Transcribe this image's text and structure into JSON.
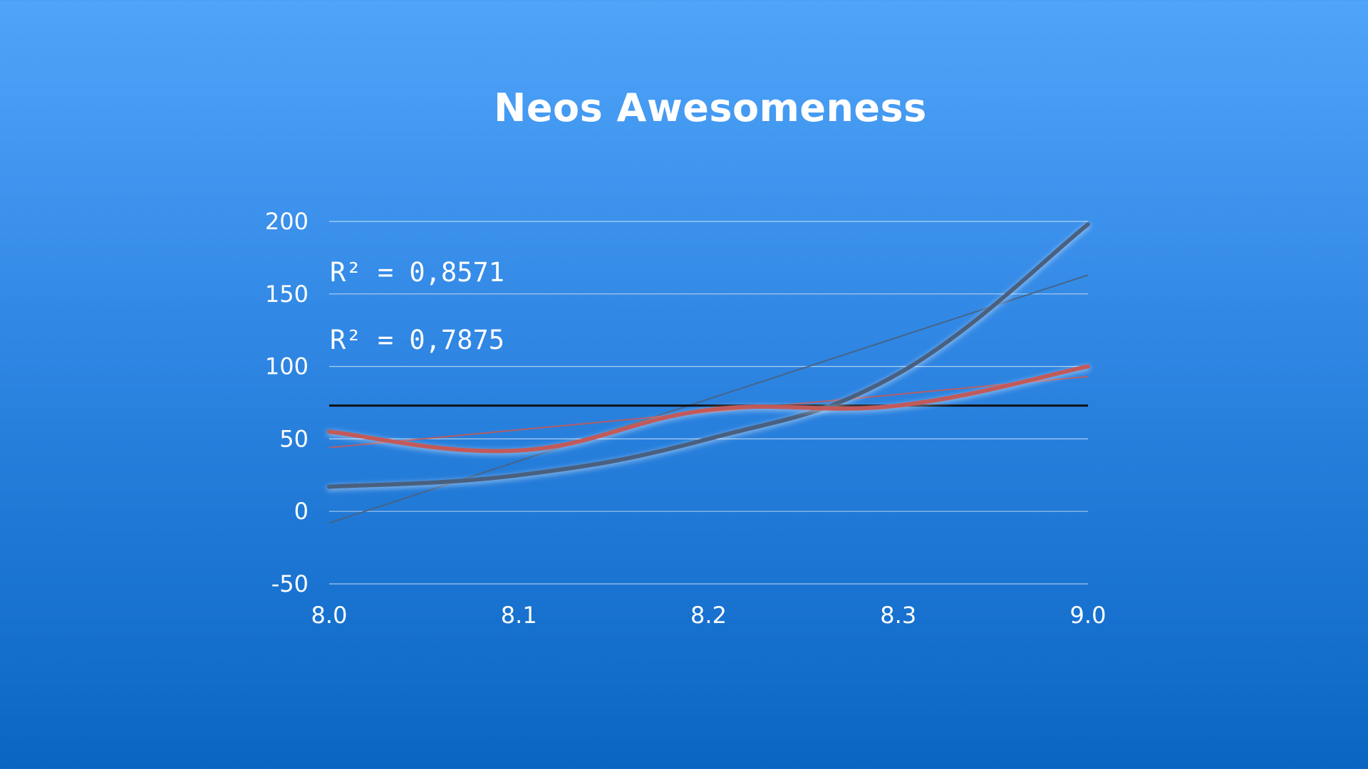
{
  "chart_data": {
    "type": "line",
    "title": "Neos Awesomeness",
    "xlabel": "",
    "ylabel": "",
    "categories": [
      "8.0",
      "8.1",
      "8.2",
      "8.3",
      "9.0"
    ],
    "ylim": [
      -50,
      200
    ],
    "yticks": [
      "200",
      "150",
      "100",
      "50",
      "0",
      "-50"
    ],
    "grid": true,
    "legend": "none",
    "series": [
      {
        "name": "",
        "color": "#4a6180",
        "values": [
          17,
          25,
          50,
          95,
          198
        ],
        "trendline": {
          "type": "polynomial",
          "r_squared_label": "R² = 0,8571",
          "start": -8,
          "end": 163
        }
      },
      {
        "name": "",
        "color": "#c25a5a",
        "values": [
          55,
          42,
          70,
          73,
          100
        ],
        "trendline": {
          "type": "linear",
          "r_squared_label": "R² = 0,7875",
          "start": 44,
          "end": 93
        }
      }
    ],
    "reference_line": {
      "value": 73,
      "color": "#111111"
    }
  }
}
